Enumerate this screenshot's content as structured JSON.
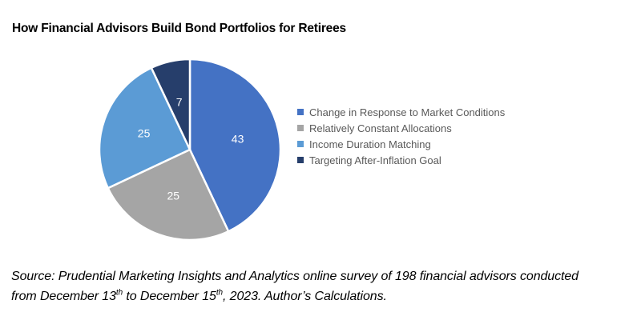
{
  "title": "How Financial Advisors Build Bond Portfolios for Retirees",
  "chart_data": {
    "type": "pie",
    "title": "How Financial Advisors Build Bond Portfolios for Retirees",
    "labels": [
      "Change in Response to Market Conditions",
      "Relatively Constant Allocations",
      "Income Duration Matching",
      "Targeting After-Inflation Goal"
    ],
    "values": [
      43,
      25,
      25,
      7
    ],
    "colors": [
      "#4472C4",
      "#A5A5A5",
      "#5B9BD5",
      "#263E6B"
    ],
    "data_label_color": "#FFFFFF",
    "data_label_font_size": 14,
    "slice_border_color": "#FFFFFF",
    "legend_position": "right",
    "legend_text_color": "#595959",
    "start_angle_deg": 0,
    "direction": "clockwise"
  },
  "source": {
    "line1": "Source: Prudential Marketing Insights and Analytics online survey of 198 financial advisors conducted",
    "line2": {
      "part1": "from December 13",
      "sup1": "th",
      "part2": " to December 15",
      "sup2": "th",
      "part3": ", 2023. Author’s Calculations."
    }
  }
}
